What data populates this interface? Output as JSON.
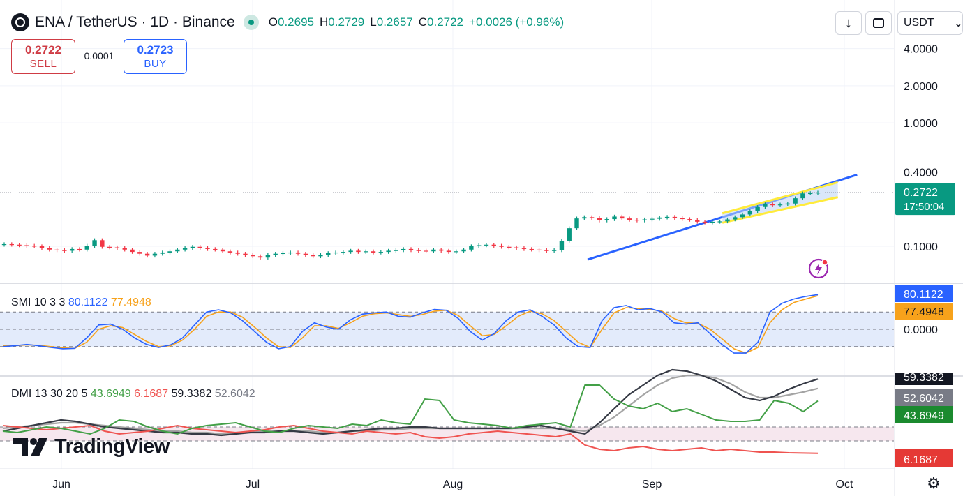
{
  "header": {
    "symbol": "ENA / TetherUS · 1D · Binance",
    "ohlc": {
      "o_label": "O",
      "o": "0.2695",
      "h_label": "H",
      "h": "0.2729",
      "l_label": "L",
      "l": "0.2657",
      "c_label": "C",
      "c": "0.2722",
      "change": "+0.0026 (+0.96%)"
    }
  },
  "trade": {
    "sell_price": "0.2722",
    "sell_label": "SELL",
    "spread": "0.0001",
    "buy_price": "0.2723",
    "buy_label": "BUY"
  },
  "toolbar": {
    "download_icon": "↓",
    "currency": "USDT",
    "currency_chevron": "⌄"
  },
  "colors": {
    "up": "#089981",
    "down": "#f23645",
    "trend": "#2962ff",
    "channel_edge": "#ffeb3b",
    "channel_fill": "#bbd3f5",
    "smi": "#2962ff",
    "smi_signal": "#f7a21b",
    "dmi_plus": "#43a047",
    "dmi_minus": "#ef5350",
    "adx": "#363a45",
    "adxr": "#a4a4a4"
  },
  "branding": {
    "name": "TradingView"
  },
  "chart_data": [
    {
      "type": "line",
      "title": "ENA / TetherUS · 1D · Binance",
      "note": "candlestick, log price scale",
      "x_labels": [
        "Jun",
        "Jul",
        "Aug",
        "Sep",
        "Oct"
      ],
      "y_ticks": [
        "4.0000",
        "2.0000",
        "1.0000",
        "0.4000",
        "0.1000"
      ],
      "y_scale": "log",
      "last_price": "0.2722",
      "countdown": "17:50:04",
      "close_series": [
        0.104,
        0.103,
        0.102,
        0.101,
        0.1,
        0.097,
        0.094,
        0.093,
        0.092,
        0.095,
        0.094,
        0.101,
        0.112,
        0.099,
        0.098,
        0.097,
        0.094,
        0.09,
        0.087,
        0.084,
        0.087,
        0.089,
        0.091,
        0.094,
        0.097,
        0.099,
        0.097,
        0.095,
        0.094,
        0.091,
        0.089,
        0.087,
        0.085,
        0.083,
        0.081,
        0.085,
        0.087,
        0.088,
        0.089,
        0.087,
        0.085,
        0.083,
        0.085,
        0.088,
        0.089,
        0.09,
        0.092,
        0.09,
        0.091,
        0.089,
        0.09,
        0.092,
        0.093,
        0.095,
        0.093,
        0.092,
        0.091,
        0.094,
        0.092,
        0.09,
        0.091,
        0.094,
        0.1,
        0.102,
        0.103,
        0.101,
        0.099,
        0.098,
        0.097,
        0.095,
        0.094,
        0.093,
        0.092,
        0.093,
        0.111,
        0.14,
        0.168,
        0.172,
        0.17,
        0.162,
        0.166,
        0.174,
        0.168,
        0.164,
        0.162,
        0.165,
        0.167,
        0.171,
        0.173,
        0.169,
        0.166,
        0.164,
        0.158,
        0.156,
        0.158,
        0.159,
        0.165,
        0.172,
        0.181,
        0.193,
        0.208,
        0.219,
        0.215,
        0.218,
        0.222,
        0.245,
        0.268,
        0.2695,
        0.2722
      ],
      "trendline": {
        "from_date": "2024-08-22",
        "from_price": 0.078,
        "to_date": "2024-10-03",
        "to_price": 0.38
      },
      "channel": {
        "start_date": "2024-09-12",
        "end_date": "2024-09-30",
        "upper": [
          0.185,
          0.33
        ],
        "lower": [
          0.155,
          0.25
        ]
      }
    },
    {
      "type": "line",
      "title": "SMI 10 3 3",
      "label": "SMI",
      "params": "10 3 3",
      "smi_value": "80.1122",
      "signal_value": "77.4948",
      "y_ticks": [
        "0.0000"
      ],
      "smi": [
        -40,
        -38,
        -35,
        -38,
        -42,
        -45,
        -44,
        -20,
        10,
        12,
        0,
        -20,
        -35,
        -42,
        -36,
        -20,
        10,
        40,
        45,
        38,
        20,
        -5,
        -30,
        -45,
        -40,
        -5,
        15,
        5,
        0,
        22,
        35,
        38,
        40,
        30,
        28,
        38,
        46,
        44,
        25,
        -5,
        -25,
        -10,
        20,
        40,
        45,
        30,
        10,
        -20,
        -40,
        -42,
        20,
        50,
        55,
        45,
        48,
        40,
        15,
        12,
        15,
        -10,
        -35,
        -55,
        -55,
        -30,
        40,
        60,
        70,
        76,
        80.1122
      ],
      "signal": [
        -38,
        -38,
        -36,
        -37,
        -40,
        -43,
        -44,
        -30,
        0,
        8,
        4,
        -12,
        -28,
        -40,
        -38,
        -25,
        0,
        30,
        40,
        40,
        28,
        5,
        -20,
        -40,
        -42,
        -20,
        8,
        8,
        2,
        15,
        30,
        36,
        38,
        34,
        30,
        34,
        42,
        44,
        32,
        8,
        -15,
        -12,
        8,
        30,
        42,
        36,
        20,
        -5,
        -30,
        -42,
        0,
        38,
        50,
        48,
        46,
        42,
        25,
        15,
        14,
        0,
        -22,
        -45,
        -55,
        -42,
        15,
        45,
        62,
        70,
        77.4948
      ]
    },
    {
      "type": "line",
      "title": "DMI 13 30 20 5",
      "label": "DMI",
      "params": "13 30 20 5",
      "plus_di": "43.6949",
      "minus_di": "6.1687",
      "adx": "59.3382",
      "adxr": "52.6042",
      "plus_di_series": [
        22,
        21,
        23,
        25,
        24,
        22,
        20,
        24,
        30,
        29,
        25,
        22,
        20,
        24,
        26,
        27,
        28,
        25,
        22,
        21,
        24,
        26,
        25,
        24,
        27,
        26,
        30,
        28,
        27,
        45,
        44,
        30,
        28,
        27,
        26,
        24,
        26,
        27,
        28,
        25,
        55,
        55,
        45,
        40,
        38,
        42,
        36,
        38,
        34,
        30,
        29,
        29,
        30,
        44,
        42,
        36,
        43.6949
      ],
      "minus_di_series": [
        26,
        25,
        24,
        23,
        24,
        25,
        26,
        22,
        20,
        21,
        22,
        24,
        26,
        24,
        23,
        22,
        21,
        22,
        23,
        25,
        26,
        24,
        22,
        21,
        20,
        22,
        21,
        20,
        21,
        18,
        17,
        18,
        20,
        21,
        22,
        21,
        20,
        19,
        18,
        20,
        12,
        9,
        8,
        10,
        11,
        9,
        8,
        9,
        10,
        8,
        9,
        8,
        7,
        7,
        6.5,
        6.3,
        6.1687
      ],
      "adx_series": [
        22,
        24,
        26,
        28,
        30,
        29,
        27,
        25,
        24,
        23,
        22,
        21,
        21,
        20,
        20,
        19,
        20,
        21,
        21,
        22,
        22,
        21,
        20,
        21,
        22,
        23,
        24,
        24,
        25,
        25,
        24,
        24,
        24,
        24,
        24,
        24,
        25,
        26,
        24,
        22,
        20,
        28,
        38,
        48,
        55,
        62,
        66,
        65,
        62,
        58,
        52,
        46,
        44,
        47,
        52,
        56,
        59.3382
      ],
      "adxr_series": [
        24,
        25,
        26,
        27,
        28,
        28,
        27,
        26,
        25,
        24,
        23,
        22,
        22,
        21,
        21,
        20,
        21,
        21,
        22,
        22,
        22,
        22,
        21,
        21,
        22,
        22,
        23,
        23,
        24,
        24,
        24,
        24,
        24,
        24,
        24,
        24,
        24,
        24,
        24,
        23,
        22,
        26,
        32,
        40,
        48,
        55,
        60,
        62,
        62,
        60,
        56,
        50,
        46,
        46,
        48,
        50,
        52.6042
      ]
    }
  ],
  "axis": {
    "x": [
      "Jun",
      "Jul",
      "Aug",
      "Sep",
      "Oct"
    ],
    "price_ticks": [
      "4.0000",
      "2.0000",
      "1.0000",
      "0.4000",
      "0.1000"
    ],
    "price_badge": "0.2722",
    "price_badge_time": "17:50:04",
    "smi_zero": "0.0000",
    "smi_badge": "80.1122",
    "smi_signal_badge": "77.4948",
    "dmi_badges": [
      "59.3382",
      "52.6042",
      "43.6949",
      "6.1687"
    ]
  }
}
